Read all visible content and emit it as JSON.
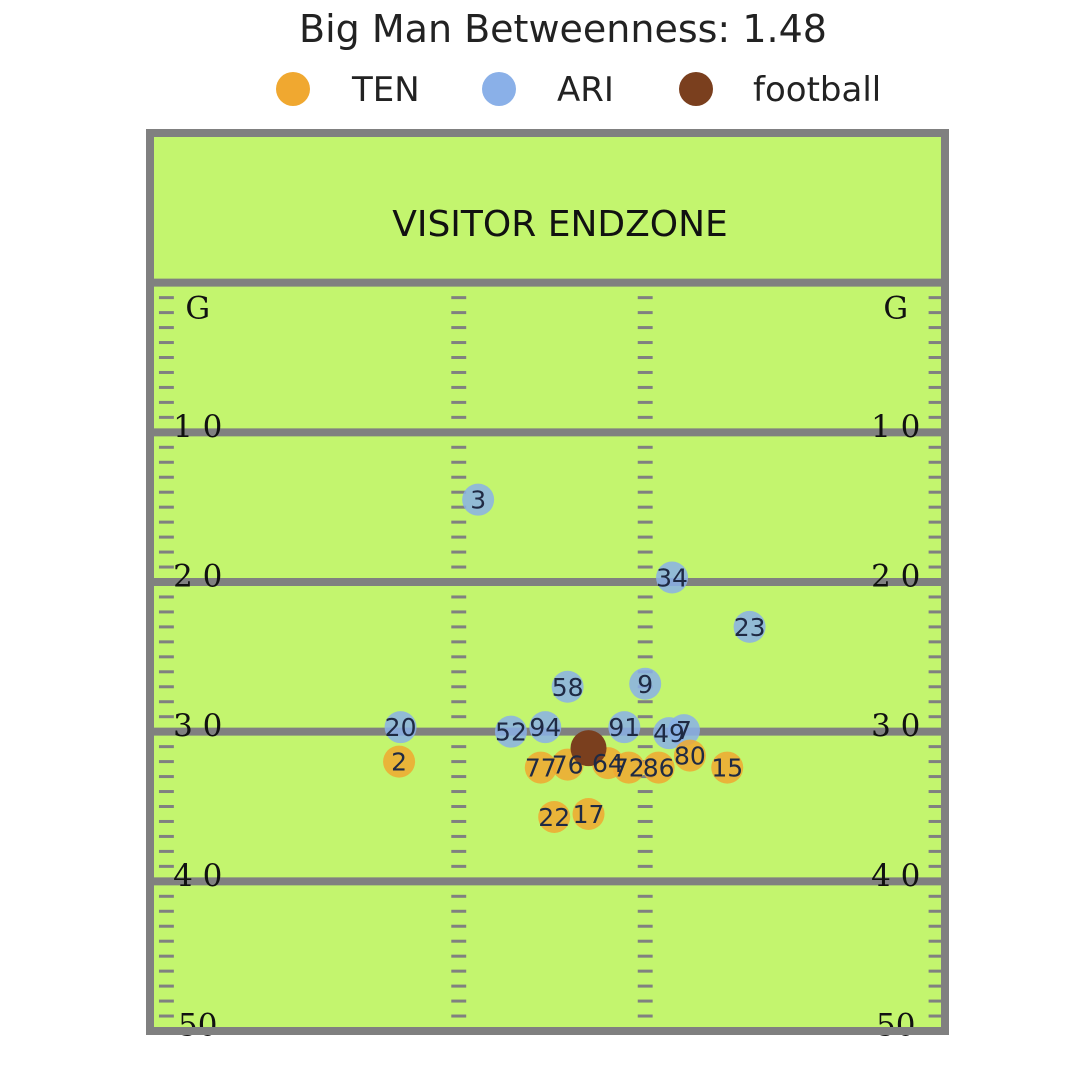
{
  "chart_data": {
    "type": "scatter",
    "title": "Big Man Betweenness: 1.48",
    "legend": {
      "placement": "top",
      "entries": [
        {
          "name": "TEN",
          "color": "#f0a830"
        },
        {
          "name": "ARI",
          "color": "#8ab0e8"
        },
        {
          "name": "football",
          "color": "#7a3f1e"
        }
      ]
    },
    "field": {
      "color": "#c3f56e",
      "line_color": "#808080",
      "endzone_label": "VISITOR ENDZONE",
      "x_range": [
        0,
        53.3
      ],
      "y_range": [
        -10,
        50
      ],
      "goal_label": "G",
      "yard_markers": [
        {
          "yard": 10,
          "label": "1 0"
        },
        {
          "yard": 20,
          "label": "2 0"
        },
        {
          "yard": 30,
          "label": "3 0"
        },
        {
          "yard": 40,
          "label": "4 0"
        },
        {
          "yard": 50,
          "label": "50"
        }
      ]
    },
    "series": [
      {
        "name": "ARI",
        "points": [
          {
            "label": "3",
            "x": 22.0,
            "y": 14.5
          },
          {
            "label": "34",
            "x": 35.0,
            "y": 19.7
          },
          {
            "label": "23",
            "x": 40.2,
            "y": 23.0
          },
          {
            "label": "58",
            "x": 28.0,
            "y": 27.0
          },
          {
            "label": "9",
            "x": 33.2,
            "y": 26.8
          },
          {
            "label": "20",
            "x": 16.8,
            "y": 29.7
          },
          {
            "label": "52",
            "x": 24.2,
            "y": 30.0
          },
          {
            "label": "94",
            "x": 26.5,
            "y": 29.7
          },
          {
            "label": "91",
            "x": 31.8,
            "y": 29.7
          },
          {
            "label": "49",
            "x": 34.8,
            "y": 30.1
          },
          {
            "label": "7",
            "x": 35.8,
            "y": 29.9
          }
        ]
      },
      {
        "name": "TEN",
        "points": [
          {
            "label": "2",
            "x": 16.7,
            "y": 32.0
          },
          {
            "label": "77",
            "x": 26.2,
            "y": 32.4
          },
          {
            "label": "76",
            "x": 28.0,
            "y": 32.2
          },
          {
            "label": "64",
            "x": 30.7,
            "y": 32.1
          },
          {
            "label": "72",
            "x": 32.1,
            "y": 32.4
          },
          {
            "label": "86",
            "x": 34.1,
            "y": 32.4
          },
          {
            "label": "80",
            "x": 36.2,
            "y": 31.6
          },
          {
            "label": "15",
            "x": 38.7,
            "y": 32.4
          },
          {
            "label": "22",
            "x": 27.1,
            "y": 35.7
          },
          {
            "label": "17",
            "x": 29.4,
            "y": 35.5
          }
        ]
      },
      {
        "name": "football",
        "points": [
          {
            "label": "",
            "x": 29.4,
            "y": 31.1
          }
        ]
      }
    ]
  }
}
